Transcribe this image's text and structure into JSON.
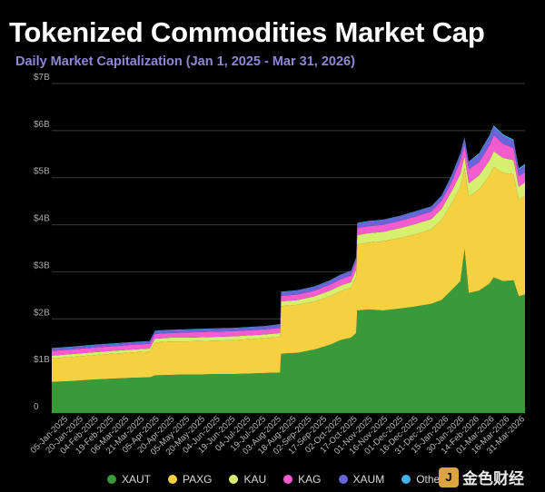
{
  "header": {
    "title": "Tokenized Commodities Market Cap",
    "subtitle": "Daily Market Capitalization (Jan 1, 2025 - Mar 31, 2026)"
  },
  "watermark": {
    "logo_glyph": "J",
    "text": "金色财经"
  },
  "chart_data": {
    "type": "area",
    "stacked": true,
    "title": "Tokenized Commodities Market Cap",
    "subtitle": "Daily Market Capitalization (Jan 1, 2025 - Mar 31, 2026)",
    "xlabel": "",
    "ylabel": "",
    "ylim": [
      0,
      7
    ],
    "y_ticks": [
      "0",
      "$1B",
      "$2B",
      "$3B",
      "$4B",
      "$5B",
      "$6B",
      "$7B"
    ],
    "grid": true,
    "legend_position": "bottom",
    "x_tick_labels": [
      "05-Jan-2025",
      "20-Jan-2025",
      "04-Feb-2025",
      "19-Feb-2025",
      "06-Mar-2025",
      "21-Mar-2025",
      "05-Apr-2025",
      "20-Apr-2025",
      "05-May-2025",
      "20-May-2025",
      "04-Jun-2025",
      "19-Jun-2025",
      "04-Jul-2025",
      "19-Jul-2025",
      "03-Aug-2025",
      "18-Aug-2025",
      "02-Sep-2025",
      "17-Sep-2025",
      "02-Oct-2025",
      "17-Oct-2025",
      "01-Nov-2025",
      "16-Nov-2025",
      "01-Dec-2025",
      "16-Dec-2025",
      "31-Dec-2025",
      "15-Jan-2026",
      "30-Jan-2026",
      "14-Feb-2026",
      "01-Mar-2026",
      "16-Mar-2026",
      "31-Mar-2026"
    ],
    "x": [
      "2025-01-01",
      "2025-01-20",
      "2025-02-10",
      "2025-03-01",
      "2025-03-20",
      "2025-04-05",
      "2025-04-10",
      "2025-04-25",
      "2025-05-10",
      "2025-05-25",
      "2025-06-10",
      "2025-06-25",
      "2025-07-10",
      "2025-07-25",
      "2025-08-08",
      "2025-08-09",
      "2025-08-25",
      "2025-09-10",
      "2025-09-25",
      "2025-10-05",
      "2025-10-15",
      "2025-10-20",
      "2025-10-21",
      "2025-11-01",
      "2025-11-15",
      "2025-12-01",
      "2025-12-15",
      "2025-12-31",
      "2026-01-10",
      "2026-01-20",
      "2026-01-28",
      "2026-02-01",
      "2026-02-05",
      "2026-02-15",
      "2026-02-25",
      "2026-03-01",
      "2026-03-10",
      "2026-03-20",
      "2026-03-25",
      "2026-03-31"
    ],
    "series": [
      {
        "name": "XAUT",
        "color": "#3a9a3a",
        "values": [
          0.66,
          0.68,
          0.71,
          0.73,
          0.75,
          0.76,
          0.8,
          0.81,
          0.82,
          0.82,
          0.83,
          0.83,
          0.84,
          0.85,
          0.86,
          1.26,
          1.28,
          1.35,
          1.45,
          1.55,
          1.6,
          1.7,
          2.18,
          2.2,
          2.18,
          2.22,
          2.26,
          2.32,
          2.4,
          2.62,
          2.8,
          3.48,
          2.55,
          2.6,
          2.75,
          2.88,
          2.8,
          2.82,
          2.48,
          2.52
        ]
      },
      {
        "name": "PAXG",
        "color": "#f5d142",
        "values": [
          0.5,
          0.51,
          0.52,
          0.53,
          0.54,
          0.55,
          0.7,
          0.71,
          0.7,
          0.71,
          0.71,
          0.72,
          0.73,
          0.74,
          0.76,
          1.01,
          1.02,
          1.02,
          1.03,
          1.04,
          1.06,
          1.2,
          1.4,
          1.42,
          1.47,
          1.5,
          1.53,
          1.58,
          1.7,
          1.85,
          2.0,
          1.72,
          2.05,
          2.15,
          2.3,
          2.35,
          2.3,
          2.25,
          2.05,
          2.1
        ]
      },
      {
        "name": "KAU",
        "color": "#d6ef6f",
        "values": [
          0.06,
          0.06,
          0.06,
          0.06,
          0.06,
          0.06,
          0.08,
          0.08,
          0.08,
          0.08,
          0.08,
          0.08,
          0.08,
          0.08,
          0.08,
          0.1,
          0.1,
          0.11,
          0.12,
          0.12,
          0.12,
          0.15,
          0.2,
          0.2,
          0.2,
          0.21,
          0.22,
          0.22,
          0.24,
          0.26,
          0.28,
          0.26,
          0.28,
          0.3,
          0.32,
          0.33,
          0.32,
          0.3,
          0.28,
          0.28
        ]
      },
      {
        "name": "KAG",
        "color": "#f25ccf",
        "values": [
          0.1,
          0.1,
          0.1,
          0.1,
          0.1,
          0.1,
          0.1,
          0.1,
          0.11,
          0.11,
          0.11,
          0.11,
          0.11,
          0.11,
          0.11,
          0.12,
          0.12,
          0.12,
          0.13,
          0.13,
          0.14,
          0.16,
          0.15,
          0.15,
          0.15,
          0.15,
          0.16,
          0.16,
          0.17,
          0.2,
          0.28,
          0.25,
          0.3,
          0.28,
          0.32,
          0.34,
          0.3,
          0.26,
          0.22,
          0.22
        ]
      },
      {
        "name": "XAUM",
        "color": "#6b63d8",
        "values": [
          0.05,
          0.05,
          0.05,
          0.05,
          0.05,
          0.05,
          0.06,
          0.06,
          0.06,
          0.06,
          0.06,
          0.06,
          0.06,
          0.06,
          0.07,
          0.08,
          0.08,
          0.08,
          0.08,
          0.09,
          0.09,
          0.09,
          0.1,
          0.1,
          0.1,
          0.1,
          0.1,
          0.1,
          0.1,
          0.12,
          0.14,
          0.13,
          0.14,
          0.16,
          0.18,
          0.18,
          0.17,
          0.15,
          0.14,
          0.14
        ]
      },
      {
        "name": "Others",
        "color": "#3fb4ea",
        "values": [
          0.01,
          0.01,
          0.01,
          0.01,
          0.01,
          0.01,
          0.01,
          0.01,
          0.01,
          0.01,
          0.01,
          0.01,
          0.01,
          0.01,
          0.01,
          0.01,
          0.01,
          0.01,
          0.01,
          0.01,
          0.01,
          0.01,
          0.01,
          0.01,
          0.01,
          0.01,
          0.01,
          0.01,
          0.01,
          0.02,
          0.02,
          0.02,
          0.02,
          0.03,
          0.03,
          0.03,
          0.03,
          0.03,
          0.03,
          0.03
        ]
      }
    ]
  }
}
